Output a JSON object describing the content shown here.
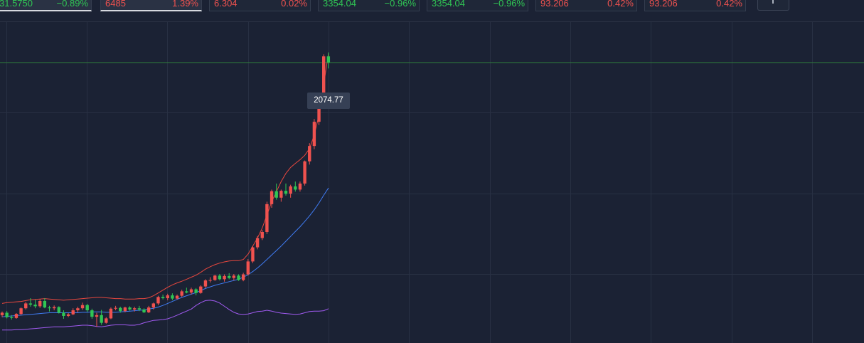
{
  "tickers": [
    {
      "symbol": "31.5750",
      "change": "−0.89%",
      "direction": "down",
      "active": true
    },
    {
      "symbol": "6485",
      "change": "1.39%",
      "direction": "up",
      "active": true
    },
    {
      "symbol": "6.304",
      "change": "0.02%",
      "direction": "up",
      "active": false
    },
    {
      "symbol": "3354.04",
      "change": "−0.96%",
      "direction": "down",
      "active": false
    },
    {
      "symbol": "3354.04",
      "change": "−0.96%",
      "direction": "down",
      "active": false
    },
    {
      "symbol": "93.206",
      "change": "0.42%",
      "direction": "up",
      "active": false
    },
    {
      "symbol": "93.206",
      "change": "0.42%",
      "direction": "up",
      "active": false
    }
  ],
  "add_button_icon": "plus-icon",
  "chart": {
    "last_price": "2074.77",
    "colors": {
      "up": "#f0524f",
      "down": "#30c654",
      "upper_band": "#e8473e",
      "mid_band": "#3f7bf2",
      "lower_band": "#a05af0",
      "price_line": "#2f7a3c"
    }
  },
  "chart_data": {
    "type": "candlestick",
    "y_range": [
      1380,
      2175
    ],
    "last_price": 2074.77,
    "candles": [
      [
        1449,
        1458,
        1444,
        1455
      ],
      [
        1455,
        1459,
        1441,
        1444
      ],
      [
        1444,
        1449,
        1438,
        1442
      ],
      [
        1442,
        1454,
        1440,
        1452
      ],
      [
        1452,
        1468,
        1449,
        1466
      ],
      [
        1466,
        1482,
        1463,
        1478
      ],
      [
        1478,
        1491,
        1470,
        1475
      ],
      [
        1475,
        1487,
        1466,
        1471
      ],
      [
        1471,
        1489,
        1467,
        1484
      ],
      [
        1484,
        1491,
        1466,
        1468
      ],
      [
        1468,
        1472,
        1458,
        1466
      ],
      [
        1466,
        1473,
        1461,
        1469
      ],
      [
        1469,
        1471,
        1453,
        1455
      ],
      [
        1455,
        1461,
        1440,
        1447
      ],
      [
        1447,
        1454,
        1444,
        1451
      ],
      [
        1451,
        1466,
        1449,
        1461
      ],
      [
        1461,
        1470,
        1456,
        1466
      ],
      [
        1466,
        1480,
        1462,
        1474
      ],
      [
        1474,
        1477,
        1457,
        1461
      ],
      [
        1461,
        1465,
        1440,
        1445
      ],
      [
        1445,
        1455,
        1420,
        1449
      ],
      [
        1449,
        1462,
        1425,
        1430
      ],
      [
        1430,
        1444,
        1428,
        1441
      ],
      [
        1441,
        1468,
        1439,
        1465
      ],
      [
        1465,
        1472,
        1461,
        1467
      ],
      [
        1467,
        1470,
        1455,
        1459
      ],
      [
        1459,
        1470,
        1456,
        1468
      ],
      [
        1468,
        1471,
        1460,
        1463
      ],
      [
        1463,
        1470,
        1458,
        1466
      ],
      [
        1466,
        1472,
        1459,
        1463
      ],
      [
        1463,
        1466,
        1454,
        1456
      ],
      [
        1456,
        1472,
        1454,
        1468
      ],
      [
        1468,
        1480,
        1463,
        1478
      ],
      [
        1478,
        1497,
        1474,
        1494
      ],
      [
        1494,
        1500,
        1488,
        1491
      ],
      [
        1491,
        1502,
        1486,
        1498
      ],
      [
        1498,
        1503,
        1486,
        1490
      ],
      [
        1490,
        1500,
        1488,
        1497
      ],
      [
        1497,
        1512,
        1494,
        1508
      ],
      [
        1508,
        1517,
        1503,
        1505
      ],
      [
        1505,
        1517,
        1500,
        1513
      ],
      [
        1513,
        1516,
        1498,
        1504
      ],
      [
        1504,
        1523,
        1502,
        1520
      ],
      [
        1520,
        1538,
        1516,
        1535
      ],
      [
        1535,
        1543,
        1530,
        1536
      ],
      [
        1536,
        1549,
        1534,
        1547
      ],
      [
        1547,
        1551,
        1535,
        1538
      ],
      [
        1538,
        1550,
        1532,
        1546
      ],
      [
        1546,
        1553,
        1538,
        1541
      ],
      [
        1541,
        1551,
        1535,
        1547
      ],
      [
        1547,
        1550,
        1534,
        1536
      ],
      [
        1536,
        1554,
        1533,
        1550
      ],
      [
        1550,
        1588,
        1547,
        1582
      ],
      [
        1582,
        1620,
        1578,
        1617
      ],
      [
        1617,
        1645,
        1612,
        1640
      ],
      [
        1640,
        1660,
        1635,
        1655
      ],
      [
        1655,
        1730,
        1650,
        1724
      ],
      [
        1724,
        1760,
        1715,
        1756
      ],
      [
        1756,
        1775,
        1735,
        1740
      ],
      [
        1740,
        1760,
        1730,
        1757
      ],
      [
        1757,
        1775,
        1745,
        1750
      ],
      [
        1750,
        1772,
        1740,
        1768
      ],
      [
        1768,
        1780,
        1755,
        1760
      ],
      [
        1760,
        1780,
        1755,
        1775
      ],
      [
        1775,
        1832,
        1770,
        1830
      ],
      [
        1830,
        1875,
        1822,
        1868
      ],
      [
        1868,
        1935,
        1860,
        1928
      ],
      [
        1928,
        1980,
        1920,
        1975
      ],
      [
        1975,
        2095,
        1960,
        2090
      ],
      [
        2090,
        2100,
        2060,
        2074.77
      ]
    ],
    "upper_band": [
      1478,
      1480,
      1481,
      1482,
      1483,
      1485,
      1487,
      1488,
      1489,
      1490,
      1489,
      1488,
      1487,
      1486,
      1487,
      1488,
      1489,
      1490,
      1491,
      1492,
      1493,
      1493,
      1492,
      1491,
      1490,
      1490,
      1489,
      1489,
      1489,
      1490,
      1490,
      1492,
      1497,
      1504,
      1511,
      1518,
      1524,
      1529,
      1533,
      1538,
      1543,
      1548,
      1555,
      1563,
      1569,
      1574,
      1578,
      1581,
      1583,
      1584,
      1584,
      1587,
      1600,
      1620,
      1640,
      1665,
      1697,
      1730,
      1755,
      1780,
      1800,
      1815,
      1825,
      1834,
      1845,
      1862,
      1895,
      1945,
      2020,
      2097
    ],
    "mid_band": [
      1445,
      1446,
      1447,
      1448,
      1449,
      1450,
      1451,
      1452,
      1453,
      1454,
      1455,
      1455,
      1455,
      1455,
      1455,
      1455,
      1455,
      1456,
      1456,
      1457,
      1457,
      1457,
      1456,
      1456,
      1456,
      1457,
      1458,
      1459,
      1460,
      1461,
      1462,
      1464,
      1466,
      1469,
      1473,
      1478,
      1483,
      1488,
      1493,
      1497,
      1501,
      1505,
      1510,
      1515,
      1519,
      1523,
      1526,
      1529,
      1532,
      1535,
      1538,
      1543,
      1549,
      1557,
      1566,
      1576,
      1587,
      1598,
      1609,
      1620,
      1632,
      1644,
      1656,
      1668,
      1681,
      1695,
      1710,
      1727,
      1746,
      1764
    ],
    "lower_band": [
      1412,
      1412,
      1412,
      1413,
      1413,
      1414,
      1415,
      1416,
      1417,
      1418,
      1419,
      1420,
      1420,
      1420,
      1421,
      1422,
      1423,
      1424,
      1424,
      1423,
      1421,
      1420,
      1422,
      1424,
      1425,
      1425,
      1425,
      1424,
      1424,
      1426,
      1430,
      1433,
      1436,
      1437,
      1438,
      1440,
      1444,
      1449,
      1454,
      1459,
      1464,
      1473,
      1480,
      1485,
      1486,
      1484,
      1479,
      1471,
      1463,
      1456,
      1452,
      1451,
      1452,
      1455,
      1458,
      1459,
      1461,
      1459,
      1456,
      1454,
      1453,
      1452,
      1451,
      1452,
      1455,
      1458,
      1459,
      1459,
      1460,
      1465
    ]
  }
}
